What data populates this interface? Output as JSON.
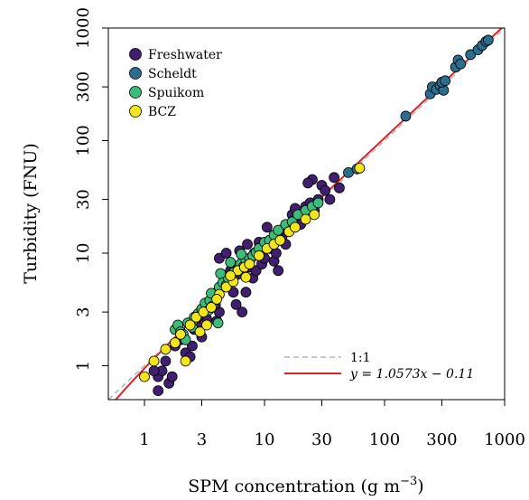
{
  "chart_data": {
    "type": "scatter",
    "xlabel": "SPM concentration (g m",
    "xlabel_sup": "−3",
    "xlabel_end": ")",
    "ylabel": "Turbidity (FNU)",
    "xscale": "log",
    "yscale": "log",
    "xlim": [
      0.5,
      1000
    ],
    "ylim": [
      0.5,
      1000
    ],
    "xticks": [
      1,
      3,
      10,
      30,
      100,
      300,
      1000
    ],
    "yticks": [
      1,
      3,
      10,
      30,
      100,
      300,
      1000
    ],
    "xtick_labels": [
      "1",
      "3",
      "10",
      "30",
      "100",
      "300",
      "1000"
    ],
    "ytick_labels": [
      "1",
      "3",
      "10",
      "30",
      "100",
      "300",
      "1000"
    ],
    "grid": false,
    "legend_position": "top-left",
    "series": [
      {
        "name": "Freshwater",
        "color": "#3f1f6e",
        "points": [
          [
            1.3,
            0.6
          ],
          [
            1.3,
            0.8
          ],
          [
            1.4,
            0.9
          ],
          [
            1.6,
            0.7
          ],
          [
            1.7,
            0.8
          ],
          [
            1.2,
            0.9
          ],
          [
            1.5,
            1.1
          ],
          [
            1.8,
            1.5
          ],
          [
            2.0,
            1.7
          ],
          [
            2.2,
            1.3
          ],
          [
            2.5,
            1.5
          ],
          [
            2.6,
            2.1
          ],
          [
            2.9,
            2.2
          ],
          [
            3.0,
            1.8
          ],
          [
            3.3,
            2.6
          ],
          [
            3.5,
            3.2
          ],
          [
            3.8,
            4.0
          ],
          [
            4.0,
            2.5
          ],
          [
            4.2,
            3.0
          ],
          [
            4.5,
            5.0
          ],
          [
            5.0,
            6.0
          ],
          [
            5.5,
            4.5
          ],
          [
            5.8,
            3.5
          ],
          [
            6.0,
            6.5
          ],
          [
            6.5,
            3.0
          ],
          [
            7.0,
            4.5
          ],
          [
            7.5,
            7.5
          ],
          [
            8.0,
            6.0
          ],
          [
            8.5,
            7.0
          ],
          [
            9.0,
            12.5
          ],
          [
            9.5,
            8.0
          ],
          [
            10.0,
            9.0
          ],
          [
            11.0,
            11.0
          ],
          [
            12.0,
            8.5
          ],
          [
            12.5,
            10.0
          ],
          [
            13.0,
            7.0
          ],
          [
            14.0,
            14.0
          ],
          [
            15.0,
            12.0
          ],
          [
            16.0,
            18.0
          ],
          [
            17.0,
            22.0
          ],
          [
            18.0,
            25.0
          ],
          [
            19.0,
            20.0
          ],
          [
            20.0,
            18.0
          ],
          [
            22.0,
            26.0
          ],
          [
            24.0,
            28.0
          ],
          [
            26.0,
            24.0
          ],
          [
            28.0,
            30.0
          ],
          [
            30.0,
            40.0
          ],
          [
            32.0,
            36.0
          ],
          [
            35.0,
            30.0
          ],
          [
            38.0,
            47.0
          ],
          [
            42.0,
            38.0
          ],
          [
            25.0,
            45.0
          ],
          [
            23.0,
            42.0
          ],
          [
            4.2,
            9.0
          ],
          [
            4.8,
            10.0
          ],
          [
            5.2,
            7.0
          ],
          [
            6.2,
            10.5
          ],
          [
            7.2,
            12.0
          ],
          [
            8.2,
            10.0
          ],
          [
            10.5,
            17.0
          ],
          [
            13.5,
            16.0
          ],
          [
            3.9,
            3.5
          ],
          [
            2.4,
            1.2
          ],
          [
            2.8,
            2.7
          ]
        ]
      },
      {
        "name": "Scheldt",
        "color": "#2c6d8f",
        "points": [
          [
            50,
            52
          ],
          [
            59,
            56
          ],
          [
            150,
            165
          ],
          [
            240,
            260
          ],
          [
            250,
            300
          ],
          [
            270,
            285
          ],
          [
            290,
            310
          ],
          [
            310,
            280
          ],
          [
            300,
            330
          ],
          [
            390,
            450
          ],
          [
            410,
            520
          ],
          [
            430,
            480
          ],
          [
            520,
            580
          ],
          [
            600,
            640
          ],
          [
            650,
            700
          ],
          [
            700,
            760
          ],
          [
            730,
            780
          ],
          [
            320,
            340
          ]
        ]
      },
      {
        "name": "Spuikom",
        "color": "#3dbb78",
        "points": [
          [
            1.8,
            2.1
          ],
          [
            1.9,
            2.3
          ],
          [
            2.0,
            2.0
          ],
          [
            2.1,
            1.9
          ],
          [
            2.3,
            2.4
          ],
          [
            2.5,
            2.2
          ],
          [
            2.6,
            2.7
          ],
          [
            2.8,
            2.9
          ],
          [
            3.0,
            3.2
          ],
          [
            3.2,
            3.6
          ],
          [
            3.4,
            3.1
          ],
          [
            3.5,
            3.8
          ],
          [
            3.7,
            3.4
          ],
          [
            3.9,
            4.2
          ],
          [
            4.0,
            4.5
          ],
          [
            4.2,
            5.0
          ],
          [
            4.5,
            5.5
          ],
          [
            4.8,
            5.2
          ],
          [
            5.0,
            6.0
          ],
          [
            5.3,
            6.5
          ],
          [
            5.6,
            6.8
          ],
          [
            6.0,
            7.2
          ],
          [
            6.3,
            8.0
          ],
          [
            6.7,
            7.6
          ],
          [
            7.0,
            8.5
          ],
          [
            7.5,
            9.0
          ],
          [
            8.0,
            9.5
          ],
          [
            8.5,
            10.2
          ],
          [
            9.0,
            11.0
          ],
          [
            10.0,
            12.5
          ],
          [
            11.0,
            13.0
          ],
          [
            12.0,
            14.5
          ],
          [
            13.0,
            16.0
          ],
          [
            15.0,
            18.0
          ],
          [
            17.0,
            19.0
          ],
          [
            19.0,
            22.0
          ],
          [
            22.0,
            24.0
          ],
          [
            25.0,
            26.0
          ],
          [
            28.0,
            28.0
          ],
          [
            4.1,
            2.4
          ],
          [
            3.6,
            4.4
          ],
          [
            4.3,
            6.6
          ],
          [
            5.2,
            8.3
          ],
          [
            6.4,
            9.8
          ],
          [
            2.2,
            1.7
          ]
        ]
      },
      {
        "name": "BCZ",
        "color": "#f2e51d",
        "points": [
          [
            1.0,
            0.8
          ],
          [
            1.2,
            1.1
          ],
          [
            1.5,
            1.4
          ],
          [
            1.8,
            1.6
          ],
          [
            2.0,
            1.9
          ],
          [
            2.4,
            2.3
          ],
          [
            2.7,
            2.7
          ],
          [
            3.1,
            3.0
          ],
          [
            3.6,
            3.3
          ],
          [
            4.2,
            4.3
          ],
          [
            4.8,
            5.0
          ],
          [
            5.5,
            5.6
          ],
          [
            6.0,
            7.0
          ],
          [
            6.8,
            7.5
          ],
          [
            7.5,
            8.0
          ],
          [
            9.0,
            9.5
          ],
          [
            10.5,
            11.0
          ],
          [
            12.0,
            12.0
          ],
          [
            13.5,
            13.0
          ],
          [
            16.0,
            15.5
          ],
          [
            18.0,
            17.0
          ],
          [
            22.0,
            20.0
          ],
          [
            26.0,
            22.0
          ],
          [
            62.0,
            57.0
          ],
          [
            2.2,
            1.1
          ],
          [
            2.9,
            2.0
          ],
          [
            3.3,
            2.3
          ],
          [
            4.0,
            3.9
          ],
          [
            5.2,
            6.3
          ],
          [
            7.0,
            6.1
          ]
        ]
      }
    ],
    "reference_lines": [
      {
        "name": "1:1",
        "style": "dashed",
        "color": "#b5b5b5",
        "slope": 1.0,
        "intercept": 0
      },
      {
        "name": "y = 1.0573x − 0.11",
        "style": "solid",
        "color": "#d62728",
        "slope": 1.0573,
        "intercept": -0.11
      }
    ]
  }
}
